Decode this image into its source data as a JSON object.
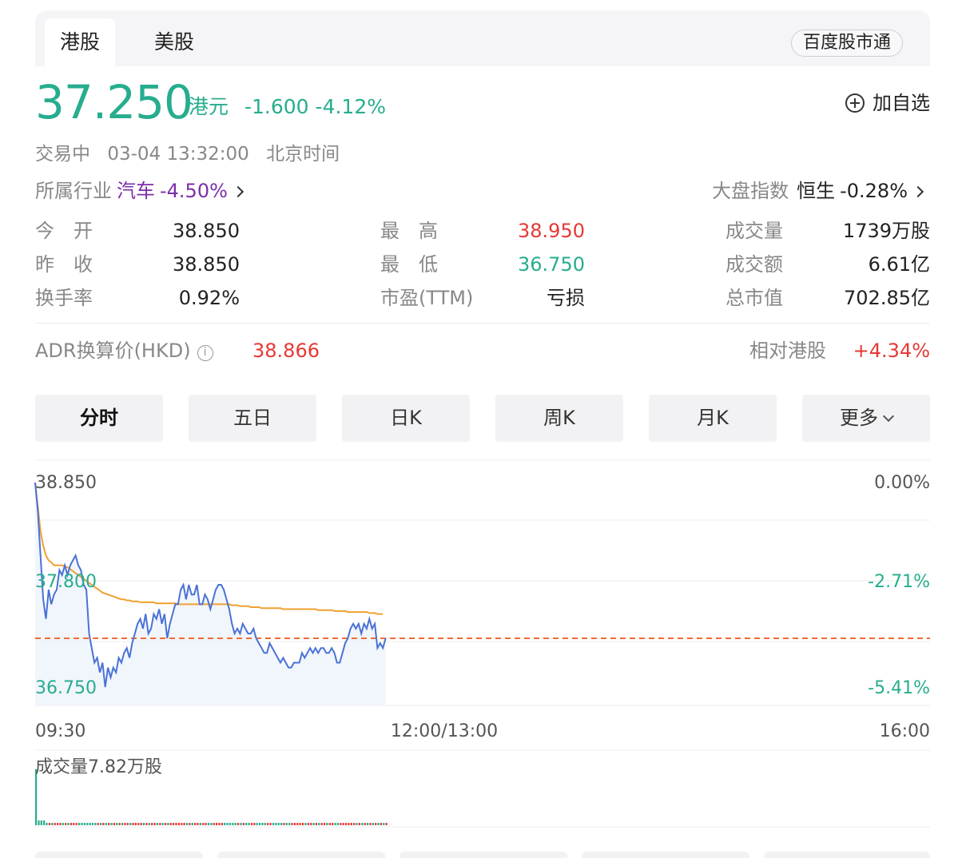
{
  "tabs": {
    "hk": "港股",
    "us": "美股",
    "market_button": "百度股市通"
  },
  "quote": {
    "price": "37.250",
    "currency": "港元",
    "change": "-1.600",
    "change_pct": "-4.12%",
    "watch_label": "加自选",
    "status": "交易中",
    "datetime": "03-04 13:32:00",
    "timezone": "北京时间"
  },
  "industry": {
    "label": "所属行业",
    "name": "汽车",
    "change": "-4.50%"
  },
  "index": {
    "label": "大盘指数",
    "name": "恒生",
    "change": "-0.28%"
  },
  "stats": {
    "open_label": "今　开",
    "open": "38.850",
    "prev_close_label": "昨　收",
    "prev_close": "38.850",
    "turnover_rate_label": "换手率",
    "turnover_rate": "0.92%",
    "high_label": "最　高",
    "high": "38.950",
    "low_label": "最　低",
    "low": "36.750",
    "pe_label": "市盈(TTM)",
    "pe": "亏损",
    "volume_label": "成交量",
    "volume": "1739万股",
    "amount_label": "成交额",
    "amount": "6.61亿",
    "mcap_label": "总市值",
    "mcap": "702.85亿"
  },
  "adr": {
    "label": "ADR换算价(HKD)",
    "value": "38.866",
    "rel_label": "相对港股",
    "rel_value": "+4.34%"
  },
  "periods": [
    "分时",
    "五日",
    "日K",
    "周K",
    "月K",
    "更多"
  ],
  "chart_labels": {
    "y_top": "38.850",
    "y_mid": "37.800",
    "y_bottom": "36.750",
    "pct_top": "0.00%",
    "pct_mid": "-2.71%",
    "pct_bottom": "-5.41%",
    "time_start": "09:30",
    "time_mid": "12:00/13:00",
    "time_end": "16:00",
    "volume_label": "成交量7.82万股"
  },
  "colors": {
    "up": "#e53935",
    "down": "#27ad8e",
    "price_line": "#4a72d6",
    "avg_line": "#f0a030",
    "ref_line": "#f26b3a"
  },
  "chart_data": {
    "type": "line",
    "ylim": [
      36.75,
      38.95
    ],
    "reference": 37.25,
    "x_ticks": [
      "09:30",
      "12:00/13:00",
      "16:00"
    ],
    "series": [
      {
        "values": [
          38.85,
          38.55,
          38.1,
          37.65,
          37.45,
          37.75,
          37.6,
          37.7,
          37.75,
          37.95,
          37.9,
          38.0,
          37.9,
          38.0,
          38.05,
          38.1,
          38.0,
          37.95,
          37.8,
          37.75,
          37.3,
          37.15,
          37.0,
          37.05,
          36.9,
          37.0,
          36.75,
          36.95,
          36.85,
          36.95,
          36.9,
          37.05,
          37.0,
          37.1,
          37.15,
          37.05,
          37.2,
          37.3,
          37.4,
          37.45,
          37.35,
          37.5,
          37.3,
          37.35,
          37.5,
          37.45,
          37.55,
          37.4,
          37.5,
          37.25,
          37.4,
          37.5,
          37.6,
          37.6,
          37.75,
          37.8,
          37.65,
          37.8,
          37.7,
          37.7,
          37.8,
          37.6,
          37.6,
          37.7,
          37.65,
          37.55,
          37.65,
          37.75,
          37.8,
          37.8,
          37.75,
          37.65,
          37.55,
          37.4,
          37.3,
          37.35,
          37.3,
          37.4,
          37.35,
          37.3,
          37.3,
          37.35,
          37.25,
          37.2,
          37.15,
          37.1,
          37.1,
          37.2,
          37.15,
          37.1,
          37.05,
          37.0,
          37.05,
          37.0,
          36.95,
          36.95,
          37.0,
          37.0,
          37.0,
          37.1,
          37.05,
          37.1,
          37.15,
          37.1,
          37.15,
          37.1,
          37.15,
          37.15,
          37.1,
          37.1,
          37.15,
          37.1,
          37.0,
          37.0,
          37.1,
          37.2,
          37.25,
          37.35,
          37.4,
          37.35,
          37.4,
          37.3,
          37.4,
          37.35,
          37.45,
          37.35,
          37.4,
          37.15,
          37.2,
          37.15,
          37.25
        ]
      },
      {
        "values": [
          38.85,
          38.6,
          38.35,
          38.2,
          38.1,
          38.05,
          38.03,
          38.0,
          38.0,
          38.0,
          38.0,
          37.99,
          37.98,
          37.96,
          37.94,
          37.92,
          37.9,
          37.88,
          37.86,
          37.84,
          37.82,
          37.8,
          37.78,
          37.76,
          37.74,
          37.72,
          37.71,
          37.7,
          37.69,
          37.68,
          37.67,
          37.66,
          37.65,
          37.65,
          37.64,
          37.64,
          37.63,
          37.63,
          37.63,
          37.62,
          37.62,
          37.62,
          37.62,
          37.62,
          37.62,
          37.61,
          37.61,
          37.61,
          37.61,
          37.61,
          37.61,
          37.61,
          37.61,
          37.6,
          37.6,
          37.6,
          37.6,
          37.6,
          37.6,
          37.6,
          37.6,
          37.6,
          37.6,
          37.6,
          37.6,
          37.6,
          37.6,
          37.6,
          37.6,
          37.6,
          37.6,
          37.6,
          37.6,
          37.59,
          37.59,
          37.59,
          37.58,
          37.58,
          37.58,
          37.58,
          37.57,
          37.57,
          37.57,
          37.57,
          37.56,
          37.56,
          37.56,
          37.56,
          37.56,
          37.56,
          37.56,
          37.56,
          37.55,
          37.55,
          37.55,
          37.55,
          37.55,
          37.55,
          37.55,
          37.55,
          37.55,
          37.55,
          37.55,
          37.55,
          37.55,
          37.54,
          37.54,
          37.54,
          37.54,
          37.54,
          37.54,
          37.53,
          37.53,
          37.53,
          37.53,
          37.53,
          37.52,
          37.52,
          37.52,
          37.52,
          37.52,
          37.52,
          37.52,
          37.52,
          37.51,
          37.51,
          37.51,
          37.5,
          37.5,
          37.5
        ]
      }
    ]
  }
}
